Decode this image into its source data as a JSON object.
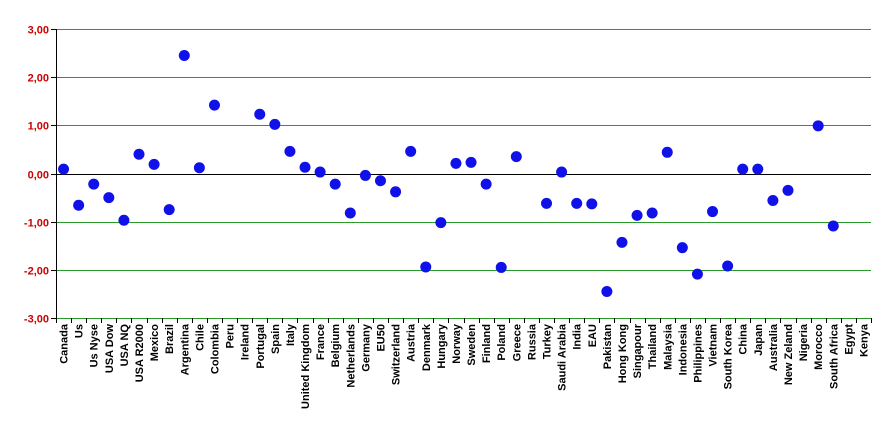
{
  "chart_data": {
    "type": "scatter",
    "categories": [
      "Canada",
      "Us",
      "Us Nyse",
      "USA Dow",
      "USA NQ",
      "USA R2000",
      "Mexico",
      "Brazil",
      "Argentina",
      "Chile",
      "Colombia",
      "Peru",
      "Ireland",
      "Portugal",
      "Spain",
      "Italy",
      "United Kingdom",
      "France",
      "Belgium",
      "Netherlands",
      "Germany",
      "EU50",
      "Switzerland",
      "Austria",
      "Denmark",
      "Hungary",
      "Norway",
      "Sweden",
      "Finland",
      "Poland",
      "Greece",
      "Russia",
      "Turkey",
      "Saudi Arabia",
      "India",
      "EAU",
      "Pakistan",
      "Hong Kong",
      "Singapour",
      "Thailand",
      "Malaysia",
      "Indonesia",
      "Philippines",
      "Vietnam",
      "South Korea",
      "China",
      "Japan",
      "Australia",
      "New Zeland",
      "Nigeria",
      "Morocco",
      "South Africa",
      "Egypt",
      "Kenya"
    ],
    "values": [
      0.09,
      -0.66,
      -0.22,
      -0.5,
      -0.97,
      0.4,
      0.19,
      -0.75,
      2.45,
      0.12,
      1.42,
      null,
      null,
      1.23,
      1.02,
      0.46,
      0.13,
      0.03,
      -0.22,
      -0.82,
      -0.04,
      -0.15,
      -0.38,
      0.46,
      -1.94,
      -1.02,
      0.21,
      0.23,
      -0.22,
      -1.95,
      0.35,
      null,
      -0.62,
      0.03,
      -0.62,
      -0.63,
      -2.45,
      -1.43,
      -0.87,
      -0.82,
      0.44,
      -1.54,
      -2.09,
      -0.79,
      -1.92,
      0.09,
      0.09,
      -0.56,
      -0.35,
      null,
      0.99,
      -1.09,
      null,
      null
    ],
    "yticks": [
      "3,00",
      "2,00",
      "1,00",
      "0,00",
      "-1,00",
      "-2,00",
      "-3,00"
    ],
    "ylim": [
      -3,
      3
    ],
    "grid": true,
    "marker_color": "#1010e8",
    "grid_color": "#2a9a2a",
    "zero_line_color": "#000000",
    "tick_label_color": "#cc0000"
  }
}
